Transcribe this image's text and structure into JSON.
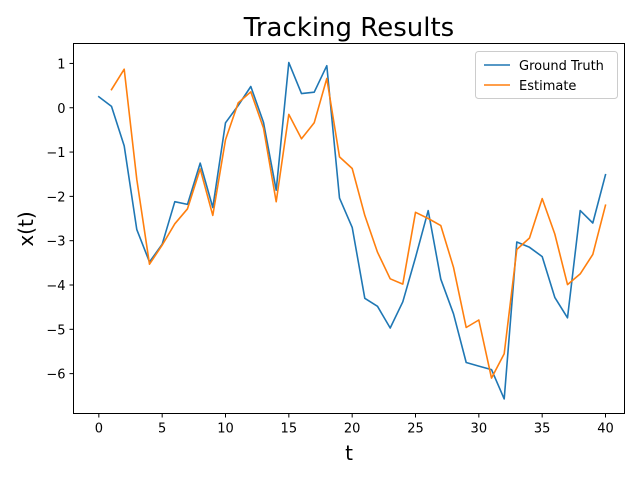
{
  "chart_data": {
    "type": "line",
    "title": "Tracking Results",
    "xlabel": "t",
    "ylabel": "x(t)",
    "xlim": [
      -2,
      41.5
    ],
    "ylim": [
      -6.9,
      1.45
    ],
    "xticks": [
      0,
      5,
      10,
      15,
      20,
      25,
      30,
      35,
      40
    ],
    "yticks": [
      -6,
      -5,
      -4,
      -3,
      -2,
      -1,
      0,
      1
    ],
    "grid": false,
    "legend_position": "upper right",
    "series": [
      {
        "name": "Ground Truth",
        "color": "#1f77b4",
        "x": [
          0,
          1,
          2,
          3,
          4,
          5,
          6,
          7,
          8,
          9,
          10,
          11,
          12,
          13,
          14,
          15,
          16,
          17,
          18,
          19,
          20,
          21,
          22,
          23,
          24,
          25,
          26,
          27,
          28,
          29,
          30,
          31,
          32,
          33,
          34,
          35,
          36,
          37,
          38,
          39,
          40
        ],
        "y": [
          0.25,
          0.03,
          -0.86,
          -2.75,
          -3.48,
          -3.08,
          -2.12,
          -2.18,
          -1.25,
          -2.25,
          -0.34,
          0.05,
          0.48,
          -0.33,
          -1.86,
          1.02,
          0.32,
          0.35,
          0.95,
          -2.04,
          -2.7,
          -4.3,
          -4.48,
          -4.97,
          -4.38,
          -3.38,
          -2.32,
          -3.87,
          -4.65,
          -5.75,
          -5.83,
          -5.91,
          -6.57,
          -3.03,
          -3.15,
          -3.36,
          -4.28,
          -4.74,
          -2.32,
          -2.6,
          -1.51
        ]
      },
      {
        "name": "Estimate",
        "color": "#ff7f0e",
        "x": [
          1,
          2,
          3,
          4,
          5,
          6,
          7,
          8,
          9,
          10,
          11,
          12,
          13,
          14,
          15,
          16,
          17,
          18,
          19,
          20,
          21,
          22,
          23,
          24,
          25,
          26,
          27,
          28,
          29,
          30,
          31,
          32,
          33,
          34,
          35,
          36,
          37,
          38,
          39,
          40
        ],
        "y": [
          0.41,
          0.87,
          -1.62,
          -3.53,
          -3.1,
          -2.62,
          -2.28,
          -1.38,
          -2.43,
          -0.72,
          0.11,
          0.36,
          -0.46,
          -2.12,
          -0.15,
          -0.7,
          -0.34,
          0.66,
          -1.11,
          -1.37,
          -2.43,
          -3.26,
          -3.86,
          -3.98,
          -2.36,
          -2.5,
          -2.66,
          -3.6,
          -4.96,
          -4.79,
          -6.1,
          -5.55,
          -3.2,
          -2.94,
          -2.05,
          -2.85,
          -3.99,
          -3.75,
          -3.31,
          -2.2
        ]
      }
    ]
  }
}
